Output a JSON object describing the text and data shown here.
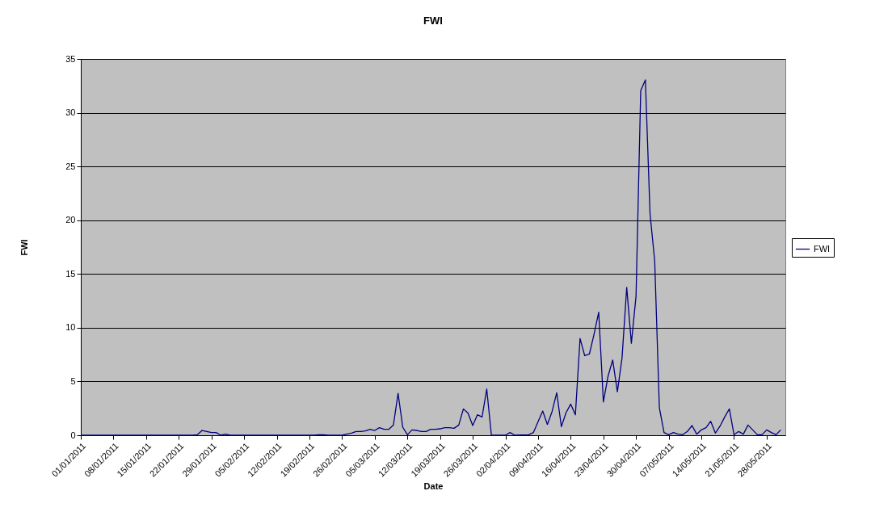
{
  "chart_data": {
    "type": "line",
    "title": "FWI",
    "xlabel": "Date",
    "ylabel": "FWI",
    "grid": "y",
    "legend": "right",
    "line_style": "solid",
    "xlim": [
      "2011-01-01",
      "2011-06-01"
    ],
    "ylim": [
      0,
      35
    ],
    "yticks": [
      0,
      5,
      10,
      15,
      20,
      25,
      30,
      35
    ],
    "xticks": [
      {
        "value": "2011-01-01",
        "label": "01/01/2011"
      },
      {
        "value": "2011-01-08",
        "label": "08/01/2011"
      },
      {
        "value": "2011-01-15",
        "label": "15/01/2011"
      },
      {
        "value": "2011-01-22",
        "label": "22/01/2011"
      },
      {
        "value": "2011-01-29",
        "label": "29/01/2011"
      },
      {
        "value": "2011-02-05",
        "label": "05/02/2011"
      },
      {
        "value": "2011-02-12",
        "label": "12/02/2011"
      },
      {
        "value": "2011-02-19",
        "label": "19/02/2011"
      },
      {
        "value": "2011-02-26",
        "label": "26/02/2011"
      },
      {
        "value": "2011-03-05",
        "label": "05/03/2011"
      },
      {
        "value": "2011-03-12",
        "label": "12/03/2011"
      },
      {
        "value": "2011-03-19",
        "label": "19/03/2011"
      },
      {
        "value": "2011-03-26",
        "label": "26/03/2011"
      },
      {
        "value": "2011-04-02",
        "label": "02/04/2011"
      },
      {
        "value": "2011-04-09",
        "label": "09/04/2011"
      },
      {
        "value": "2011-04-16",
        "label": "16/04/2011"
      },
      {
        "value": "2011-04-23",
        "label": "23/04/2011"
      },
      {
        "value": "2011-04-30",
        "label": "30/04/2011"
      },
      {
        "value": "2011-05-07",
        "label": "07/05/2011"
      },
      {
        "value": "2011-05-14",
        "label": "14/05/2011"
      },
      {
        "value": "2011-05-21",
        "label": "21/05/2011"
      },
      {
        "value": "2011-05-28",
        "label": "28/05/2011"
      }
    ],
    "x": [
      "2011-01-01",
      "2011-01-25",
      "2011-01-26",
      "2011-01-27",
      "2011-01-28",
      "2011-01-29",
      "2011-01-30",
      "2011-01-31",
      "2011-02-01",
      "2011-02-02",
      "2011-02-20",
      "2011-02-21",
      "2011-02-22",
      "2011-02-23",
      "2011-02-26",
      "2011-02-27",
      "2011-02-28",
      "2011-03-01",
      "2011-03-02",
      "2011-03-03",
      "2011-03-04",
      "2011-03-05",
      "2011-03-06",
      "2011-03-07",
      "2011-03-08",
      "2011-03-09",
      "2011-03-10",
      "2011-03-11",
      "2011-03-12",
      "2011-03-13",
      "2011-03-14",
      "2011-03-15",
      "2011-03-16",
      "2011-03-17",
      "2011-03-18",
      "2011-03-19",
      "2011-03-20",
      "2011-03-21",
      "2011-03-22",
      "2011-03-23",
      "2011-03-24",
      "2011-03-25",
      "2011-03-26",
      "2011-03-27",
      "2011-03-28",
      "2011-03-29",
      "2011-03-30",
      "2011-04-02",
      "2011-04-03",
      "2011-04-04",
      "2011-04-07",
      "2011-04-08",
      "2011-04-09",
      "2011-04-10",
      "2011-04-11",
      "2011-04-12",
      "2011-04-13",
      "2011-04-14",
      "2011-04-15",
      "2011-04-16",
      "2011-04-17",
      "2011-04-18",
      "2011-04-19",
      "2011-04-20",
      "2011-04-21",
      "2011-04-22",
      "2011-04-23",
      "2011-04-24",
      "2011-04-25",
      "2011-04-26",
      "2011-04-27",
      "2011-04-28",
      "2011-04-29",
      "2011-04-30",
      "2011-05-01",
      "2011-05-02",
      "2011-05-03",
      "2011-05-04",
      "2011-05-05",
      "2011-05-06",
      "2011-05-07",
      "2011-05-08",
      "2011-05-09",
      "2011-05-10",
      "2011-05-11",
      "2011-05-12",
      "2011-05-13",
      "2011-05-14",
      "2011-05-15",
      "2011-05-16",
      "2011-05-17",
      "2011-05-18",
      "2011-05-19",
      "2011-05-20",
      "2011-05-21",
      "2011-05-22",
      "2011-05-23",
      "2011-05-24",
      "2011-05-25",
      "2011-05-26",
      "2011-05-27",
      "2011-05-28",
      "2011-05-29",
      "2011-05-30",
      "2011-05-31"
    ],
    "series": [
      {
        "name": "FWI",
        "color": "#000080",
        "values": [
          0,
          0,
          0.05,
          0.45,
          0.35,
          0.25,
          0.25,
          0,
          0.1,
          0,
          0,
          0.05,
          0.05,
          0,
          0,
          0.1,
          0.2,
          0.35,
          0.35,
          0.4,
          0.55,
          0.45,
          0.7,
          0.55,
          0.55,
          0.95,
          3.9,
          0.75,
          0.05,
          0.5,
          0.45,
          0.35,
          0.35,
          0.55,
          0.55,
          0.6,
          0.7,
          0.7,
          0.65,
          0.95,
          2.45,
          2.05,
          0.9,
          1.9,
          1.7,
          4.3,
          0,
          0,
          0.25,
          0,
          0.05,
          0.25,
          1.25,
          2.25,
          1.0,
          2.2,
          3.95,
          0.8,
          2.1,
          2.9,
          1.9,
          9.0,
          7.4,
          7.55,
          9.4,
          11.45,
          3.1,
          5.5,
          7.0,
          4.05,
          7.2,
          13.75,
          8.55,
          12.95,
          32.05,
          33.05,
          20.6,
          16.2,
          2.55,
          0.25,
          0.05,
          0.25,
          0.1,
          0.05,
          0.35,
          0.9,
          0.1,
          0.5,
          0.7,
          1.3,
          0.2,
          0.85,
          1.7,
          2.45,
          0.05,
          0.35,
          0.1,
          0.95,
          0.5,
          0.05,
          0.05,
          0.5,
          0.25,
          0.05,
          0.5
        ]
      }
    ]
  }
}
